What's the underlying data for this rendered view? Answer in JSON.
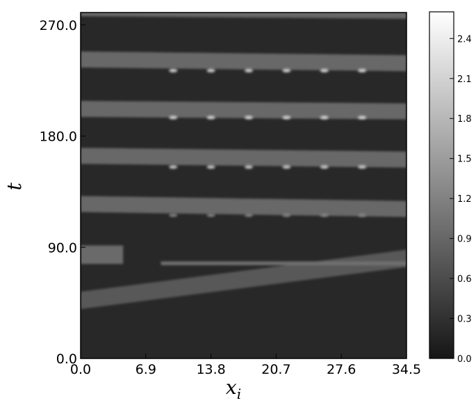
{
  "chart_data": {
    "type": "heatmap",
    "title": "",
    "xlabel": "x",
    "xlabel_subscript": "i",
    "ylabel": "t",
    "xlim": [
      0.0,
      34.5
    ],
    "ylim": [
      0.0,
      280.0
    ],
    "x_ticks": [
      "0.0",
      "6.9",
      "13.8",
      "20.7",
      "27.6",
      "34.5"
    ],
    "x_tick_values": [
      0.0,
      6.9,
      13.8,
      20.7,
      27.6,
      34.5
    ],
    "y_ticks": [
      "0.0",
      "90.0",
      "180.0",
      "270.0"
    ],
    "y_tick_values": [
      0.0,
      90.0,
      180.0,
      270.0
    ],
    "colormap": "gray",
    "background_value": 0.2,
    "colorbar": {
      "min": 0.0,
      "max": 2.6,
      "ticks": [
        "0.0",
        "0.3",
        "0.6",
        "0.9",
        "1.2",
        "1.5",
        "1.8",
        "2.1",
        "2.4"
      ],
      "tick_values": [
        0.0,
        0.3,
        0.6,
        0.9,
        1.2,
        1.5,
        1.8,
        2.1,
        2.4
      ]
    },
    "bands": [
      {
        "x_start": 0.0,
        "x_end": 4.5,
        "t_left": 84,
        "t_right": 84,
        "thickness": 15,
        "value": 0.95
      },
      {
        "x_start": 0.0,
        "x_end": 34.5,
        "t_left": 47,
        "t_right": 81,
        "thickness": 14,
        "value": 0.75
      },
      {
        "x_start": 8.5,
        "x_end": 34.5,
        "t_left": 77,
        "t_right": 77,
        "thickness": 3,
        "value": 1.0
      },
      {
        "x_start": 0.0,
        "x_end": 34.5,
        "t_left": 125,
        "t_right": 121,
        "thickness": 13,
        "value": 0.9
      },
      {
        "x_start": 0.0,
        "x_end": 34.5,
        "t_left": 164,
        "t_right": 161,
        "thickness": 13,
        "value": 0.9
      },
      {
        "x_start": 0.0,
        "x_end": 34.5,
        "t_left": 202,
        "t_right": 200,
        "thickness": 13,
        "value": 0.9
      },
      {
        "x_start": 0.0,
        "x_end": 34.5,
        "t_left": 242,
        "t_right": 239,
        "thickness": 13,
        "value": 0.9
      },
      {
        "x_start": 0.0,
        "x_end": 34.5,
        "t_left": 280,
        "t_right": 278,
        "thickness": 6,
        "value": 0.9
      }
    ],
    "hot_spots": [
      {
        "x": 9.8,
        "t": 116,
        "value": 1.2
      },
      {
        "x": 13.8,
        "t": 116,
        "value": 1.2
      },
      {
        "x": 17.8,
        "t": 116,
        "value": 1.2
      },
      {
        "x": 21.8,
        "t": 116,
        "value": 1.2
      },
      {
        "x": 25.8,
        "t": 116,
        "value": 1.2
      },
      {
        "x": 29.8,
        "t": 116,
        "value": 1.2
      },
      {
        "x": 9.8,
        "t": 155,
        "value": 2.0
      },
      {
        "x": 13.8,
        "t": 155,
        "value": 2.0
      },
      {
        "x": 17.8,
        "t": 155,
        "value": 2.0
      },
      {
        "x": 21.8,
        "t": 155,
        "value": 2.0
      },
      {
        "x": 25.8,
        "t": 155,
        "value": 2.0
      },
      {
        "x": 29.8,
        "t": 155,
        "value": 2.0
      },
      {
        "x": 9.8,
        "t": 195,
        "value": 2.1
      },
      {
        "x": 13.8,
        "t": 195,
        "value": 2.1
      },
      {
        "x": 17.8,
        "t": 195,
        "value": 2.1
      },
      {
        "x": 21.8,
        "t": 195,
        "value": 2.1
      },
      {
        "x": 25.8,
        "t": 195,
        "value": 2.1
      },
      {
        "x": 29.8,
        "t": 195,
        "value": 2.1
      },
      {
        "x": 9.8,
        "t": 233,
        "value": 2.1
      },
      {
        "x": 13.8,
        "t": 233,
        "value": 2.1
      },
      {
        "x": 17.8,
        "t": 233,
        "value": 2.1
      },
      {
        "x": 21.8,
        "t": 233,
        "value": 2.1
      },
      {
        "x": 25.8,
        "t": 233,
        "value": 2.1
      },
      {
        "x": 29.8,
        "t": 233,
        "value": 2.1
      }
    ],
    "grid": false,
    "legend": "colorbar-right"
  }
}
